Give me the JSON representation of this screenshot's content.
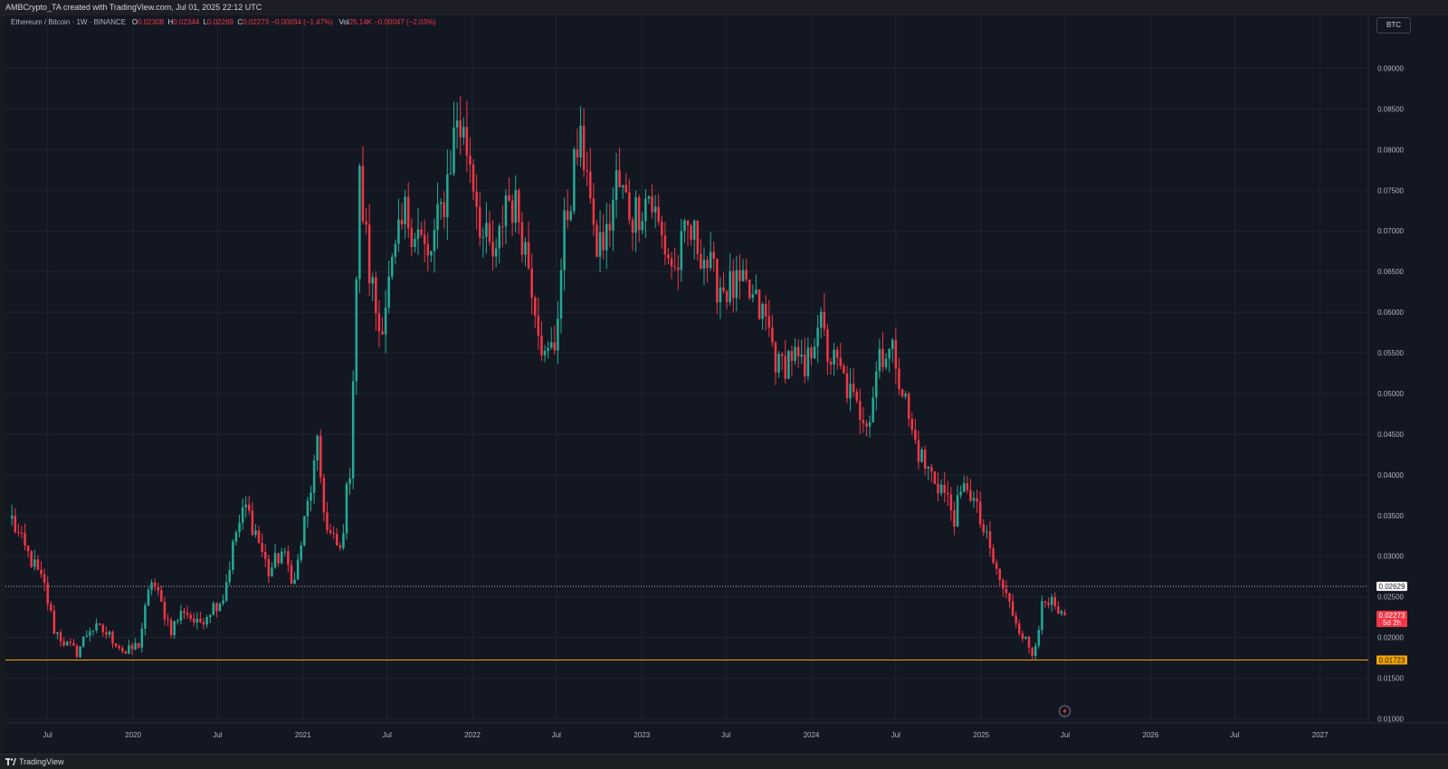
{
  "header": {
    "created_by": "AMBCrypto_TA created with TradingView.com, Jul 01, 2025 22:12 UTC"
  },
  "legend": {
    "symbol": "Ethereum / Bitcoin · 1W · BINANCE",
    "o_label": "O",
    "o_value": "0.02308",
    "h_label": "H",
    "h_value": "0.02344",
    "l_label": "L",
    "l_value": "0.02269",
    "c_label": "C",
    "c_value": "0.02273 −0.00034 (−1.47%)",
    "vol_label": "Vol",
    "vol_value": "25.14K −0.00047 (−2.03%)"
  },
  "currency_badge": "BTC",
  "footer": {
    "brand": "TradingView",
    "logo_icon": "tradingview-logo-icon"
  },
  "replay_icon": "lightning-replay-icon",
  "chart_data": {
    "type": "candlestick",
    "symbol": "ETH/BTC",
    "interval": "1W",
    "exchange": "BINANCE",
    "x_ticks": [
      "Jul",
      "2020",
      "Jul",
      "2021",
      "Jul",
      "2022",
      "Jul",
      "2023",
      "Jul",
      "2024",
      "Jul",
      "2025",
      "Jul",
      "2026",
      "Jul",
      "2027"
    ],
    "y_ticks": [
      "0.09000",
      "0.08500",
      "0.08000",
      "0.07500",
      "0.07000",
      "0.06500",
      "0.06000",
      "0.05500",
      "0.05000",
      "0.04500",
      "0.04000",
      "0.03500",
      "0.03000",
      "0.02500",
      "0.02000",
      "0.01500",
      "0.01000"
    ],
    "ylim": [
      0.0095,
      0.0945
    ],
    "xlim": [
      "2019-04-01",
      "2027-04-15"
    ],
    "grid": true,
    "colors": {
      "up": "#22ab94",
      "down": "#f23645",
      "background": "#131722",
      "grid": "#1f2431",
      "support": "#f7a600"
    },
    "levels": [
      {
        "value": 0.02629,
        "label": "0.02629",
        "style": "dotted",
        "color": "#b2b5be"
      },
      {
        "value": 0.01723,
        "label": "0.01723",
        "style": "solid",
        "color": "#f7a600"
      }
    ],
    "last_price": {
      "value": 0.02273,
      "label": "0.02273",
      "countdown": "5d 2h",
      "color": "#f23645"
    },
    "price_path": [
      [
        "2019-04-15",
        0.0345
      ],
      [
        "2019-05-06",
        0.0315
      ],
      [
        "2019-05-27",
        0.0295
      ],
      [
        "2019-06-24",
        0.0262
      ],
      [
        "2019-07-15",
        0.021
      ],
      [
        "2019-08-12",
        0.019
      ],
      [
        "2019-09-02",
        0.0182
      ],
      [
        "2019-09-30",
        0.0212
      ],
      [
        "2019-10-28",
        0.0208
      ],
      [
        "2019-11-25",
        0.0195
      ],
      [
        "2019-12-16",
        0.018
      ],
      [
        "2020-01-13",
        0.0192
      ],
      [
        "2020-02-10",
        0.0272
      ],
      [
        "2020-03-02",
        0.024
      ],
      [
        "2020-03-23",
        0.021
      ],
      [
        "2020-04-20",
        0.0235
      ],
      [
        "2020-05-18",
        0.0215
      ],
      [
        "2020-06-15",
        0.0235
      ],
      [
        "2020-07-13",
        0.025
      ],
      [
        "2020-08-10",
        0.033
      ],
      [
        "2020-08-31",
        0.036
      ],
      [
        "2020-09-21",
        0.033
      ],
      [
        "2020-10-19",
        0.028
      ],
      [
        "2020-11-16",
        0.0305
      ],
      [
        "2020-12-14",
        0.0268
      ],
      [
        "2021-01-04",
        0.034
      ],
      [
        "2021-02-01",
        0.043
      ],
      [
        "2021-02-22",
        0.033
      ],
      [
        "2021-03-22",
        0.0305
      ],
      [
        "2021-04-12",
        0.041
      ],
      [
        "2021-05-03",
        0.076
      ],
      [
        "2021-05-24",
        0.065
      ],
      [
        "2021-06-14",
        0.058
      ],
      [
        "2021-07-12",
        0.065
      ],
      [
        "2021-08-09",
        0.072
      ],
      [
        "2021-09-06",
        0.07
      ],
      [
        "2021-09-27",
        0.066
      ],
      [
        "2021-11-01",
        0.074
      ],
      [
        "2021-11-29",
        0.084
      ],
      [
        "2021-12-27",
        0.079
      ],
      [
        "2022-01-24",
        0.069
      ],
      [
        "2022-02-21",
        0.066
      ],
      [
        "2022-03-14",
        0.0745
      ],
      [
        "2022-04-11",
        0.072
      ],
      [
        "2022-05-09",
        0.064
      ],
      [
        "2022-06-06",
        0.054
      ],
      [
        "2022-06-27",
        0.056
      ],
      [
        "2022-07-18",
        0.07
      ],
      [
        "2022-08-15",
        0.08
      ],
      [
        "2022-09-05",
        0.079
      ],
      [
        "2022-09-19",
        0.068
      ],
      [
        "2022-10-17",
        0.069
      ],
      [
        "2022-11-07",
        0.076
      ],
      [
        "2022-12-12",
        0.072
      ],
      [
        "2023-01-16",
        0.0745
      ],
      [
        "2023-02-13",
        0.069
      ],
      [
        "2023-03-13",
        0.065
      ],
      [
        "2023-04-10",
        0.07
      ],
      [
        "2023-05-08",
        0.068
      ],
      [
        "2023-06-05",
        0.064
      ],
      [
        "2023-07-03",
        0.063
      ],
      [
        "2023-08-14",
        0.0625
      ],
      [
        "2023-09-25",
        0.059
      ],
      [
        "2023-10-23",
        0.053
      ],
      [
        "2023-11-20",
        0.055
      ],
      [
        "2023-12-18",
        0.052
      ],
      [
        "2024-01-15",
        0.0595
      ],
      [
        "2024-02-05",
        0.055
      ],
      [
        "2024-03-04",
        0.0525
      ],
      [
        "2024-04-08",
        0.048
      ],
      [
        "2024-05-06",
        0.0475
      ],
      [
        "2024-05-27",
        0.0555
      ],
      [
        "2024-07-01",
        0.0545
      ],
      [
        "2024-08-05",
        0.045
      ],
      [
        "2024-09-02",
        0.041
      ],
      [
        "2024-10-07",
        0.0385
      ],
      [
        "2024-11-04",
        0.035
      ],
      [
        "2024-12-02",
        0.039
      ],
      [
        "2025-01-06",
        0.033
      ],
      [
        "2025-02-03",
        0.028
      ],
      [
        "2025-03-03",
        0.024
      ],
      [
        "2025-04-07",
        0.0195
      ],
      [
        "2025-04-21",
        0.018
      ],
      [
        "2025-05-12",
        0.0235
      ],
      [
        "2025-06-02",
        0.024
      ],
      [
        "2025-06-16",
        0.0225
      ],
      [
        "2025-06-30",
        0.0227
      ]
    ],
    "final_candle": {
      "date": "2025-06-30",
      "open": 0.02308,
      "high": 0.02344,
      "low": 0.02269,
      "close": 0.02273
    }
  }
}
